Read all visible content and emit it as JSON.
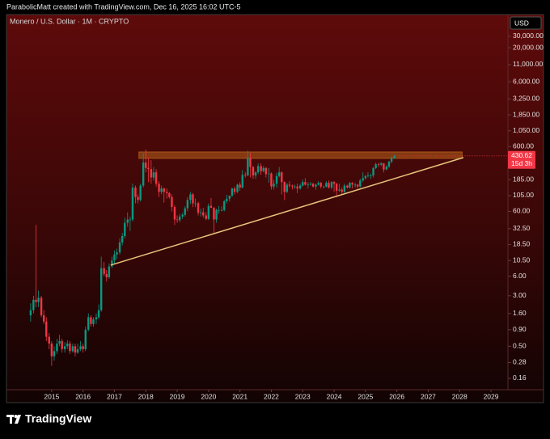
{
  "header": {
    "attribution": "ParabolicMatt created with TradingView.com, Dec 16, 2025 16:02 UTC-5"
  },
  "chart_data": {
    "type": "candlestick",
    "title": "Monero / U.S. Dollar · 1M · CRYPTO",
    "currency": "USD",
    "countdown": "15d 3h",
    "log_scale": true,
    "grid": false,
    "up_color": "#089981",
    "down_color": "#f23645",
    "x": [
      2014.33,
      2014.42,
      2014.5,
      2014.58,
      2014.67,
      2014.75,
      2014.83,
      2014.92,
      2015,
      2015.08,
      2015.17,
      2015.25,
      2015.33,
      2015.42,
      2015.5,
      2015.58,
      2015.67,
      2015.75,
      2015.83,
      2015.92,
      2016,
      2016.08,
      2016.17,
      2016.25,
      2016.33,
      2016.42,
      2016.5,
      2016.58,
      2016.67,
      2016.75,
      2016.83,
      2016.92,
      2017,
      2017.08,
      2017.17,
      2017.25,
      2017.33,
      2017.42,
      2017.5,
      2017.58,
      2017.67,
      2017.75,
      2017.83,
      2017.92,
      2018,
      2018.08,
      2018.17,
      2018.25,
      2018.33,
      2018.42,
      2018.5,
      2018.58,
      2018.67,
      2018.75,
      2018.83,
      2018.92,
      2019,
      2019.08,
      2019.17,
      2019.25,
      2019.33,
      2019.42,
      2019.5,
      2019.58,
      2019.67,
      2019.75,
      2019.83,
      2019.92,
      2020,
      2020.08,
      2020.17,
      2020.25,
      2020.33,
      2020.42,
      2020.5,
      2020.58,
      2020.67,
      2020.75,
      2020.83,
      2020.92,
      2021,
      2021.08,
      2021.17,
      2021.25,
      2021.33,
      2021.42,
      2021.5,
      2021.58,
      2021.67,
      2021.75,
      2021.83,
      2021.92,
      2022,
      2022.08,
      2022.17,
      2022.25,
      2022.33,
      2022.42,
      2022.5,
      2022.58,
      2022.67,
      2022.75,
      2022.83,
      2022.92,
      2023,
      2023.08,
      2023.17,
      2023.25,
      2023.33,
      2023.42,
      2023.5,
      2023.58,
      2023.67,
      2023.75,
      2023.83,
      2023.92,
      2024,
      2024.08,
      2024.17,
      2024.25,
      2024.33,
      2024.42,
      2024.5,
      2024.58,
      2024.67,
      2024.75,
      2024.83,
      2024.92,
      2025,
      2025.08,
      2025.17,
      2025.25,
      2025.33,
      2025.42,
      2025.5,
      2025.58,
      2025.67,
      2025.75,
      2025.83,
      2025.92
    ],
    "open": [
      1.5,
      1.8,
      2.6,
      2.4,
      2.8,
      1.5,
      1.2,
      0.7,
      0.55,
      0.35,
      0.42,
      0.55,
      0.6,
      0.45,
      0.5,
      0.55,
      0.42,
      0.5,
      0.4,
      0.45,
      0.5,
      0.45,
      0.9,
      1.4,
      1.1,
      1.3,
      1.4,
      1.8,
      8,
      6.5,
      5.8,
      8.5,
      10.5,
      13,
      14,
      20,
      25,
      40,
      45,
      45,
      140,
      100,
      90,
      150,
      340,
      280,
      270,
      200,
      240,
      160,
      120,
      135,
      120,
      115,
      100,
      70,
      45,
      44,
      50,
      53,
      67,
      90,
      110,
      80,
      80,
      57,
      58,
      52,
      46,
      73,
      68,
      45,
      63,
      63,
      63,
      86,
      94,
      105,
      135,
      120,
      155,
      140,
      220,
      215,
      400,
      290,
      215,
      240,
      300,
      250,
      280,
      225,
      230,
      145,
      160,
      210,
      240,
      170,
      120,
      155,
      150,
      145,
      145,
      135,
      150,
      170,
      155,
      155,
      160,
      145,
      155,
      165,
      145,
      145,
      165,
      140,
      170,
      160,
      125,
      130,
      120,
      150,
      140,
      165,
      155,
      155,
      145,
      180,
      195,
      210,
      215,
      215,
      280,
      320,
      315,
      330,
      265,
      295,
      350,
      400
    ],
    "high": [
      2.3,
      3.0,
      37,
      3.6,
      3.0,
      1.8,
      1.4,
      0.8,
      0.6,
      0.5,
      0.65,
      0.75,
      0.65,
      0.58,
      0.62,
      0.6,
      0.55,
      0.55,
      0.55,
      0.6,
      0.55,
      1.0,
      1.6,
      1.5,
      1.4,
      1.6,
      2.2,
      12,
      10,
      7.5,
      9.5,
      12,
      15,
      16,
      23,
      28,
      48,
      58,
      50,
      160,
      150,
      110,
      160,
      470,
      540,
      400,
      370,
      290,
      270,
      175,
      150,
      140,
      135,
      120,
      110,
      75,
      52,
      55,
      57,
      72,
      100,
      120,
      115,
      95,
      85,
      66,
      68,
      58,
      80,
      97,
      70,
      66,
      73,
      72,
      90,
      108,
      105,
      140,
      145,
      160,
      170,
      260,
      240,
      517,
      480,
      300,
      250,
      330,
      330,
      300,
      290,
      280,
      240,
      185,
      235,
      290,
      250,
      175,
      165,
      175,
      155,
      155,
      160,
      160,
      185,
      195,
      170,
      170,
      165,
      160,
      175,
      170,
      150,
      175,
      180,
      175,
      175,
      165,
      160,
      140,
      160,
      155,
      170,
      170,
      165,
      160,
      190,
      240,
      220,
      240,
      230,
      290,
      340,
      340,
      345,
      335,
      310,
      360,
      420,
      450
    ],
    "low": [
      1.2,
      1.6,
      2.0,
      2.0,
      1.4,
      1.1,
      0.6,
      0.45,
      0.25,
      0.3,
      0.38,
      0.5,
      0.4,
      0.4,
      0.45,
      0.38,
      0.4,
      0.35,
      0.38,
      0.42,
      0.4,
      0.42,
      0.85,
      1.0,
      1.0,
      1.1,
      1.3,
      1.7,
      6,
      5,
      5.5,
      8,
      9.5,
      11,
      13,
      18,
      23,
      35,
      30,
      42,
      80,
      80,
      85,
      140,
      240,
      170,
      160,
      180,
      145,
      100,
      110,
      82,
      95,
      95,
      60,
      37,
      40,
      41,
      46,
      50,
      60,
      78,
      70,
      70,
      52,
      50,
      48,
      44,
      44,
      68,
      27,
      40,
      55,
      60,
      60,
      80,
      85,
      100,
      110,
      115,
      125,
      135,
      200,
      210,
      200,
      190,
      190,
      225,
      220,
      240,
      200,
      165,
      130,
      130,
      140,
      200,
      110,
      90,
      115,
      140,
      130,
      135,
      115,
      130,
      145,
      150,
      135,
      150,
      140,
      130,
      150,
      135,
      135,
      140,
      135,
      130,
      120,
      100,
      120,
      110,
      115,
      135,
      135,
      135,
      140,
      135,
      140,
      170,
      185,
      200,
      190,
      200,
      270,
      290,
      300,
      240,
      260,
      280,
      330,
      390
    ],
    "close": [
      1.8,
      2.6,
      2.4,
      2.8,
      1.5,
      1.2,
      0.7,
      0.55,
      0.35,
      0.42,
      0.55,
      0.6,
      0.45,
      0.5,
      0.55,
      0.42,
      0.5,
      0.4,
      0.45,
      0.5,
      0.45,
      0.9,
      1.4,
      1.1,
      1.3,
      1.4,
      1.8,
      8,
      6.5,
      5.8,
      8.5,
      10.5,
      13,
      14,
      20,
      25,
      40,
      45,
      45,
      140,
      100,
      90,
      150,
      340,
      280,
      270,
      200,
      240,
      160,
      120,
      135,
      120,
      115,
      100,
      70,
      45,
      44,
      50,
      53,
      67,
      90,
      110,
      80,
      80,
      57,
      58,
      52,
      46,
      73,
      68,
      45,
      63,
      63,
      63,
      86,
      94,
      105,
      135,
      120,
      155,
      140,
      220,
      215,
      400,
      290,
      215,
      240,
      300,
      250,
      280,
      225,
      230,
      145,
      160,
      210,
      240,
      170,
      120,
      155,
      150,
      145,
      145,
      135,
      150,
      170,
      155,
      155,
      160,
      145,
      155,
      165,
      145,
      145,
      165,
      140,
      170,
      160,
      125,
      130,
      120,
      150,
      140,
      165,
      155,
      155,
      145,
      180,
      195,
      210,
      215,
      215,
      280,
      320,
      315,
      330,
      265,
      295,
      350,
      400,
      430.62
    ],
    "xlim": [
      2013.56,
      2029.54
    ],
    "xticks": [
      2015,
      2016,
      2017,
      2018,
      2019,
      2020,
      2021,
      2022,
      2023,
      2024,
      2025,
      2026,
      2027,
      2028,
      2029
    ],
    "ylim": [
      0.107,
      65000
    ],
    "yticks": [
      {
        "value": 30000,
        "label": "30,000.00"
      },
      {
        "value": 20000,
        "label": "20,000.00"
      },
      {
        "value": 11000,
        "label": "11,000.00"
      },
      {
        "value": 6000,
        "label": "6,000.00"
      },
      {
        "value": 3250,
        "label": "3,250.00"
      },
      {
        "value": 1850,
        "label": "1,850.00"
      },
      {
        "value": 1050,
        "label": "1,050.00"
      },
      {
        "value": 600,
        "label": "600.00"
      },
      {
        "value": 185,
        "label": "185.00"
      },
      {
        "value": 105,
        "label": "105.00"
      },
      {
        "value": 60,
        "label": "60.00"
      },
      {
        "value": 32.5,
        "label": "32.50"
      },
      {
        "value": 18.5,
        "label": "18.50"
      },
      {
        "value": 10.5,
        "label": "10.50"
      },
      {
        "value": 6,
        "label": "6.00"
      },
      {
        "value": 3,
        "label": "3.00"
      },
      {
        "value": 1.6,
        "label": "1.60"
      },
      {
        "value": 0.9,
        "label": "0.90"
      },
      {
        "value": 0.5,
        "label": "0.50"
      },
      {
        "value": 0.28,
        "label": "0.28"
      },
      {
        "value": 0.16,
        "label": "0.16"
      }
    ],
    "zone": {
      "x": [
        2017.78,
        2028.08
      ],
      "y": [
        394,
        495
      ],
      "color": "#b8621b"
    },
    "trendline": {
      "x": [
        2016.88,
        2028.12
      ],
      "y": [
        8.9,
        406
      ],
      "color": "#e8c47c"
    }
  },
  "footer": {
    "brand": "TradingView"
  }
}
